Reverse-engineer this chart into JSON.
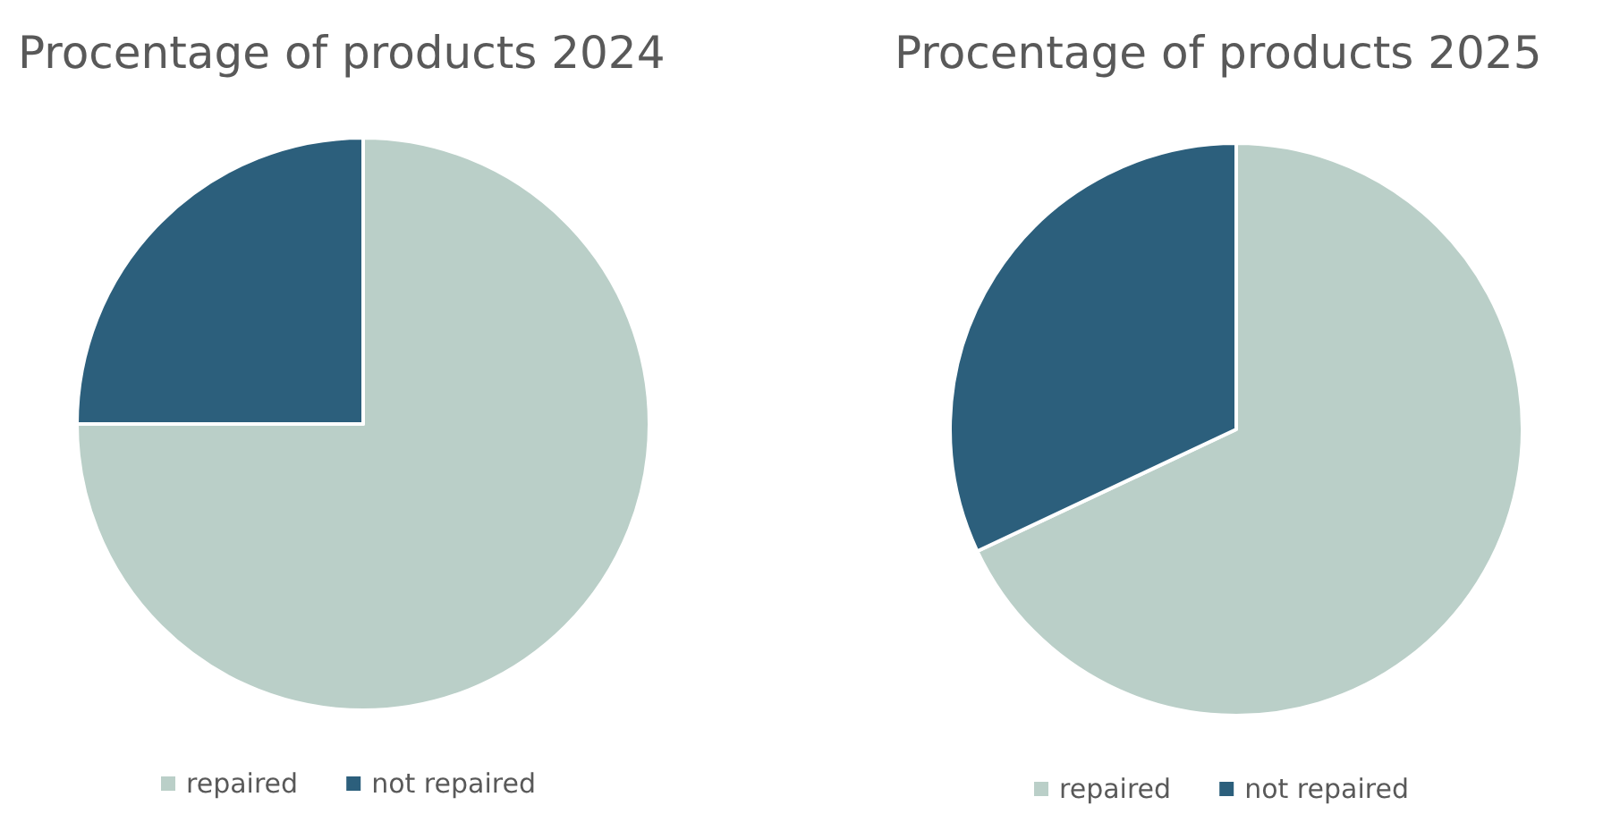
{
  "chart_data": [
    {
      "type": "pie",
      "title": "Procentage of products 2024",
      "categories": [
        "repaired",
        "not repaired"
      ],
      "values": [
        75,
        25
      ],
      "colors": [
        "#bacfc8",
        "#2c5f7c"
      ],
      "legend": "bottom"
    },
    {
      "type": "pie",
      "title": "Procentage of products 2025",
      "categories": [
        "repaired",
        "not repaired"
      ],
      "values": [
        68,
        32
      ],
      "colors": [
        "#bacfc8",
        "#2c5f7c"
      ],
      "legend": "bottom"
    }
  ]
}
